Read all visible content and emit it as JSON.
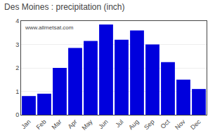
{
  "chart_data": {
    "type": "bar",
    "title": "Des Moines : precipitation (inch)",
    "categories": [
      "Jan",
      "Feb",
      "Mar",
      "Apr",
      "May",
      "Jun",
      "Jul",
      "Aug",
      "Sep",
      "Oct",
      "Nov",
      "Dec"
    ],
    "values": [
      0.8,
      0.9,
      2.0,
      2.85,
      3.15,
      3.85,
      3.2,
      3.6,
      3.0,
      2.25,
      1.5,
      1.1
    ],
    "color": "#0000dd",
    "ylim": [
      0,
      4
    ],
    "yticks": [
      0,
      1,
      2,
      3,
      4
    ],
    "grid": true,
    "annotations": [
      "www.allmetsat.com"
    ]
  }
}
